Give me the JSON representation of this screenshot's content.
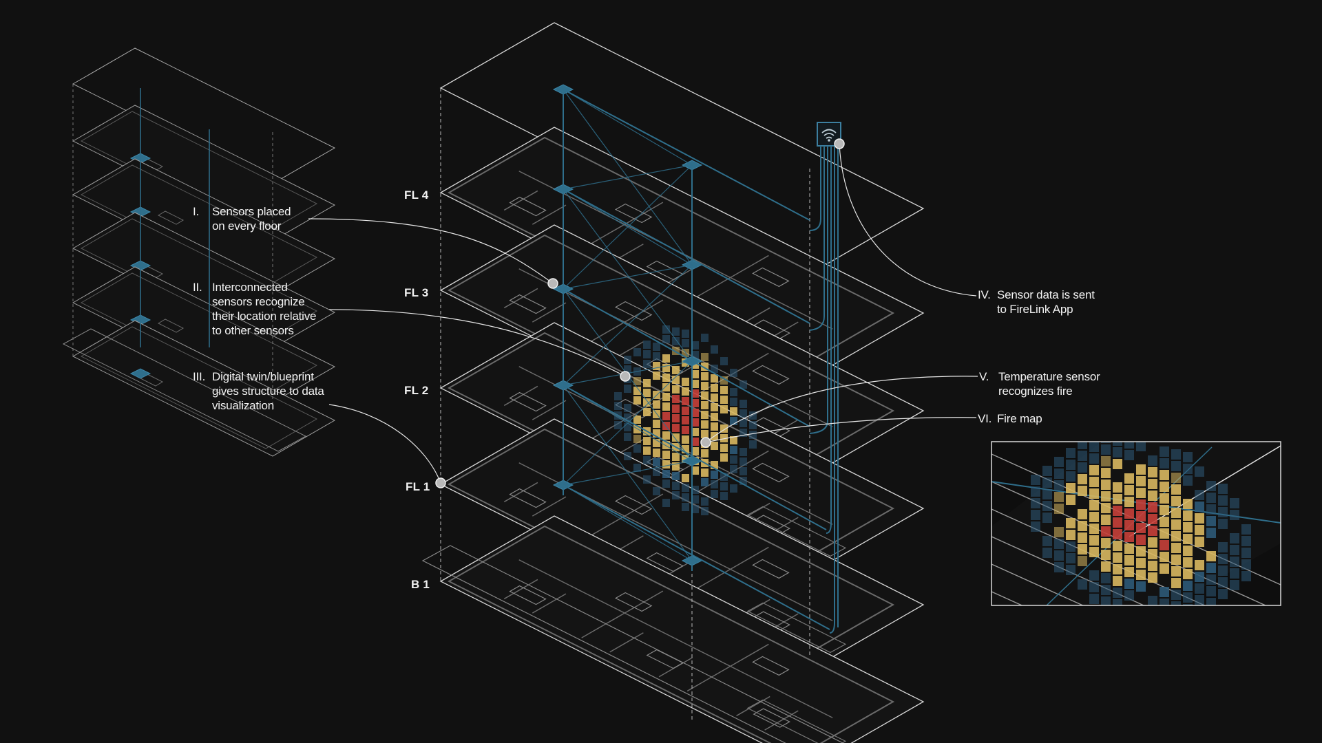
{
  "floors": [
    "FL 4",
    "FL 3",
    "FL 2",
    "FL 1",
    "B 1"
  ],
  "steps": [
    {
      "num": "I.",
      "text": "Sensors placed\non every floor"
    },
    {
      "num": "II.",
      "text": "Interconnected\nsensors recognize\ntheir location relative\nto other sensors"
    },
    {
      "num": "III.",
      "text": "Digital twin/blueprint\ngives structure to data\nvisualization"
    },
    {
      "num": "IV.",
      "text": "Sensor data is sent\nto FireLink App"
    },
    {
      "num": "V.",
      "text": "Temperature sensor\nrecognizes fire"
    },
    {
      "num": "VI.",
      "text": "Fire map"
    }
  ],
  "colors": {
    "background": "#111111",
    "outline": "#d8d8d8",
    "floorplan": "#6a6a6a",
    "sensor_network": "#2f6f8c",
    "heat_low": "#2d5a78",
    "heat_mid": "#d9b860",
    "heat_high": "#c8403a"
  },
  "icons": {
    "router": "wifi-router-icon",
    "sensor": "sensor-node-icon"
  }
}
